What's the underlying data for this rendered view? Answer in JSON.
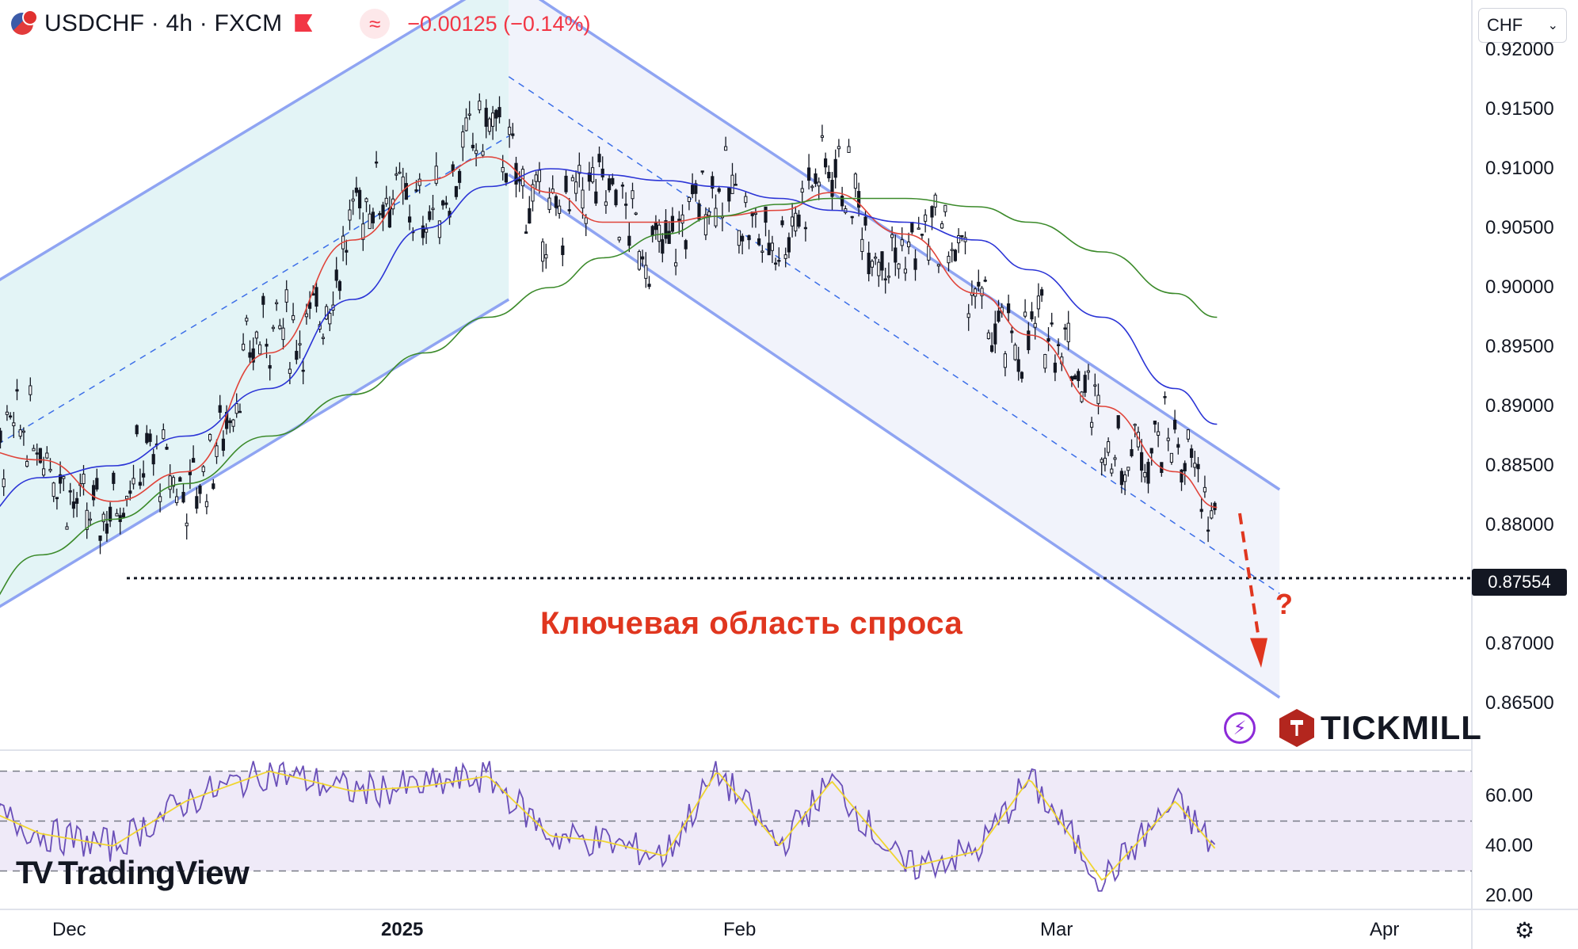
{
  "header": {
    "symbol": "USDCHF · 4h · FXCM",
    "approx_glyph": "≈",
    "change": "−0.00125 (−0.14%)"
  },
  "currency_selector": "CHF",
  "current_price_label": "0.87554",
  "annotation": "Ключевая область спроса",
  "question_mark": "?",
  "branding": {
    "tradingview": "TradingView",
    "tickmill": "TICKMILL"
  },
  "colors": {
    "candle": "#131722",
    "ema_fast": "#e0443a",
    "ema_mid": "#2b34d6",
    "ema_slow": "#3b8a2a",
    "channel_line": "#8fa4f2",
    "up_channel_fill": "#e3f4f6",
    "down_channel_fill": "#f1f3fb",
    "rsi_line": "#6a4fb8",
    "rsi_ma": "#f0d530",
    "rsi_band_fill": "#efeaf8",
    "annotation": "#e0361f"
  },
  "chart_data": {
    "type": "line",
    "title": "USDCHF · 4h · FXCM",
    "x_axis": {
      "ticks": [
        "Dec",
        "2025",
        "Feb",
        "Mar",
        "Apr"
      ]
    },
    "price_axis": {
      "ticks": [
        "0.92000",
        "0.91500",
        "0.91000",
        "0.90500",
        "0.90000",
        "0.89500",
        "0.89000",
        "0.88500",
        "0.88000",
        "0.87554",
        "0.87000",
        "0.86500"
      ],
      "range": [
        0.862,
        0.9205
      ]
    },
    "rsi_axis": {
      "ticks": [
        "60.00",
        "40.00",
        "20.00"
      ],
      "range": [
        15,
        75
      ],
      "bands": [
        70,
        50,
        30
      ]
    },
    "series": [
      {
        "name": "EMA fast",
        "color": "#e0443a",
        "x": [
          "2024-11-21",
          "2024-11-28",
          "2024-12-05",
          "2024-12-12",
          "2024-12-20",
          "2024-12-28",
          "2025-01-04",
          "2025-01-10",
          "2025-01-16",
          "2025-01-21",
          "2025-01-27",
          "2025-02-01",
          "2025-02-07",
          "2025-02-12",
          "2025-02-19",
          "2025-02-26",
          "2025-03-03",
          "2025-03-10",
          "2025-03-17",
          "2025-03-21"
        ],
        "values": [
          0.8865,
          0.8855,
          0.882,
          0.8845,
          0.8945,
          0.904,
          0.909,
          0.911,
          0.908,
          0.9055,
          0.9055,
          0.906,
          0.9065,
          0.908,
          0.9045,
          0.8995,
          0.896,
          0.89,
          0.8845,
          0.8815
        ]
      },
      {
        "name": "EMA mid",
        "color": "#2b34d6",
        "x": [
          "2024-11-21",
          "2024-11-28",
          "2024-12-05",
          "2024-12-12",
          "2024-12-20",
          "2024-12-28",
          "2025-01-04",
          "2025-01-10",
          "2025-01-16",
          "2025-01-21",
          "2025-01-27",
          "2025-02-01",
          "2025-02-07",
          "2025-02-12",
          "2025-02-19",
          "2025-02-26",
          "2025-03-03",
          "2025-03-10",
          "2025-03-17",
          "2025-03-21"
        ],
        "values": [
          0.88,
          0.884,
          0.885,
          0.8875,
          0.8915,
          0.899,
          0.905,
          0.9085,
          0.91,
          0.9095,
          0.909,
          0.9085,
          0.9075,
          0.9065,
          0.9055,
          0.904,
          0.9015,
          0.8975,
          0.8915,
          0.8885
        ]
      },
      {
        "name": "EMA slow",
        "color": "#3b8a2a",
        "x": [
          "2024-11-21",
          "2024-11-28",
          "2024-12-05",
          "2024-12-12",
          "2024-12-20",
          "2024-12-28",
          "2025-01-04",
          "2025-01-10",
          "2025-01-16",
          "2025-01-21",
          "2025-01-27",
          "2025-02-01",
          "2025-02-07",
          "2025-02-12",
          "2025-02-19",
          "2025-02-26",
          "2025-03-03",
          "2025-03-10",
          "2025-03-17",
          "2025-03-21"
        ],
        "values": [
          0.872,
          0.8775,
          0.8805,
          0.8835,
          0.8875,
          0.891,
          0.8945,
          0.8975,
          0.9,
          0.9025,
          0.9045,
          0.906,
          0.907,
          0.9075,
          0.9075,
          0.9068,
          0.9055,
          0.903,
          0.8995,
          0.8975
        ]
      },
      {
        "name": "RSI",
        "color": "#6a4fb8",
        "x": [
          "2024-11-21",
          "2024-11-28",
          "2024-12-05",
          "2024-12-12",
          "2024-12-20",
          "2024-12-28",
          "2025-01-04",
          "2025-01-10",
          "2025-01-16",
          "2025-01-21",
          "2025-01-27",
          "2025-02-01",
          "2025-02-07",
          "2025-02-12",
          "2025-02-19",
          "2025-02-26",
          "2025-03-03",
          "2025-03-10",
          "2025-03-17",
          "2025-03-21"
        ],
        "values": [
          58,
          45,
          40,
          58,
          70,
          62,
          64,
          68,
          44,
          42,
          36,
          70,
          40,
          66,
          31,
          38,
          67,
          26,
          58,
          38
        ]
      }
    ],
    "channels": [
      {
        "name": "ascending channel",
        "upper": [
          [
            "2024-11-21",
            0.899
          ],
          [
            "2025-01-12",
            0.9265
          ]
        ],
        "lower": [
          [
            "2024-11-21",
            0.8715
          ],
          [
            "2025-01-12",
            0.899
          ]
        ]
      },
      {
        "name": "descending channel",
        "upper": [
          [
            "2025-01-12",
            0.926
          ],
          [
            "2025-03-27",
            0.883
          ]
        ],
        "lower": [
          [
            "2025-01-12",
            0.9095
          ],
          [
            "2025-03-27",
            0.8655
          ]
        ]
      }
    ],
    "horizontal_line": {
      "value": 0.87554,
      "style": "dotted"
    },
    "annotations": [
      {
        "text": "Ключевая область спроса",
        "color": "#e0361f"
      },
      {
        "text": "?",
        "color": "#e0361f"
      }
    ]
  }
}
